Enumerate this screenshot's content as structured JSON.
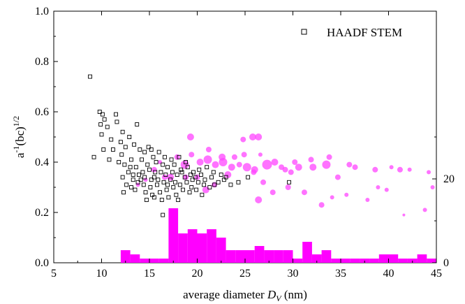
{
  "chart_data": {
    "type": "scatter",
    "xlabel_prefix": "average diameter ",
    "xlabel_var": "D",
    "xlabel_sub": "V",
    "xlabel_unit": " (nm)",
    "ylabel_base": "a",
    "ylabel_sup1": "-1",
    "ylabel_mid": "(bc)",
    "ylabel_sup2": "1/2",
    "xlim": [
      5,
      45
    ],
    "ylim": [
      0,
      1.0
    ],
    "xticks": [
      "5",
      "10",
      "15",
      "20",
      "25",
      "30",
      "35",
      "40",
      "45"
    ],
    "yticks": [
      "0.0",
      "0.2",
      "0.4",
      "0.6",
      "0.8",
      "1.0"
    ],
    "right_axis": {
      "ylim": [
        0,
        60
      ],
      "ticks": [
        "0",
        "20"
      ]
    },
    "legend": {
      "label": "HAADF STEM",
      "position": "top-right"
    },
    "colors": {
      "haadf": "#000000",
      "sims": "#ff44ff",
      "histogram": "#ff00ff"
    },
    "series": [
      {
        "name": "HAADF STEM",
        "marker": "open-square",
        "points": [
          [
            8.8,
            0.74
          ],
          [
            9.8,
            0.6
          ],
          [
            10.1,
            0.59
          ],
          [
            10.3,
            0.57
          ],
          [
            9.9,
            0.55
          ],
          [
            10.6,
            0.54
          ],
          [
            11.5,
            0.59
          ],
          [
            11.6,
            0.56
          ],
          [
            12.2,
            0.52
          ],
          [
            13.7,
            0.55
          ],
          [
            12.9,
            0.5
          ],
          [
            10.0,
            0.51
          ],
          [
            11.0,
            0.49
          ],
          [
            12.0,
            0.48
          ],
          [
            9.2,
            0.42
          ],
          [
            10.2,
            0.45
          ],
          [
            10.8,
            0.41
          ],
          [
            11.2,
            0.45
          ],
          [
            12.1,
            0.43
          ],
          [
            12.5,
            0.46
          ],
          [
            13.4,
            0.47
          ],
          [
            14.0,
            0.45
          ],
          [
            14.5,
            0.44
          ],
          [
            13.1,
            0.41
          ],
          [
            12.4,
            0.39
          ],
          [
            11.8,
            0.4
          ],
          [
            13.0,
            0.38
          ],
          [
            14.2,
            0.41
          ],
          [
            15.2,
            0.45
          ],
          [
            16.0,
            0.44
          ],
          [
            16.6,
            0.42
          ],
          [
            17.3,
            0.41
          ],
          [
            15.7,
            0.4
          ],
          [
            14.8,
            0.39
          ],
          [
            13.6,
            0.38
          ],
          [
            12.8,
            0.36
          ],
          [
            12.2,
            0.34
          ],
          [
            13.3,
            0.35
          ],
          [
            14.3,
            0.36
          ],
          [
            15.0,
            0.37
          ],
          [
            15.5,
            0.34
          ],
          [
            16.2,
            0.36
          ],
          [
            16.9,
            0.38
          ],
          [
            17.6,
            0.39
          ],
          [
            18.3,
            0.37
          ],
          [
            19.0,
            0.38
          ],
          [
            19.6,
            0.36
          ],
          [
            20.2,
            0.37
          ],
          [
            21.0,
            0.38
          ],
          [
            21.7,
            0.36
          ],
          [
            18.8,
            0.4
          ],
          [
            17.9,
            0.35
          ],
          [
            17.2,
            0.33
          ],
          [
            16.5,
            0.32
          ],
          [
            15.8,
            0.31
          ],
          [
            15.1,
            0.3
          ],
          [
            14.4,
            0.31
          ],
          [
            13.8,
            0.32
          ],
          [
            13.1,
            0.3
          ],
          [
            12.6,
            0.31
          ],
          [
            12.3,
            0.28
          ],
          [
            13.5,
            0.29
          ],
          [
            14.6,
            0.28
          ],
          [
            15.3,
            0.27
          ],
          [
            16.1,
            0.28
          ],
          [
            16.8,
            0.29
          ],
          [
            17.5,
            0.3
          ],
          [
            18.2,
            0.31
          ],
          [
            18.9,
            0.32
          ],
          [
            19.5,
            0.33
          ],
          [
            20.1,
            0.32
          ],
          [
            20.8,
            0.33
          ],
          [
            21.5,
            0.34
          ],
          [
            22.2,
            0.32
          ],
          [
            22.8,
            0.33
          ],
          [
            23.5,
            0.31
          ],
          [
            24.3,
            0.32
          ],
          [
            18.5,
            0.29
          ],
          [
            19.2,
            0.28
          ],
          [
            19.9,
            0.29
          ],
          [
            20.5,
            0.27
          ],
          [
            17.8,
            0.27
          ],
          [
            17.0,
            0.26
          ],
          [
            16.3,
            0.25
          ],
          [
            15.5,
            0.26
          ],
          [
            14.7,
            0.25
          ],
          [
            18.0,
            0.25
          ],
          [
            16.4,
            0.19
          ],
          [
            25.3,
            0.34
          ],
          [
            29.6,
            0.32
          ],
          [
            21.3,
            0.3
          ],
          [
            20.7,
            0.31
          ],
          [
            19.4,
            0.3
          ],
          [
            18.7,
            0.34
          ],
          [
            17.4,
            0.36
          ],
          [
            16.7,
            0.35
          ],
          [
            15.9,
            0.33
          ],
          [
            15.2,
            0.33
          ],
          [
            14.5,
            0.34
          ],
          [
            13.9,
            0.35
          ],
          [
            19.3,
            0.35
          ],
          [
            20.4,
            0.35
          ],
          [
            21.8,
            0.31
          ],
          [
            22.5,
            0.35
          ],
          [
            23.0,
            0.34
          ],
          [
            17.7,
            0.32
          ],
          [
            16.9,
            0.31
          ],
          [
            14.1,
            0.33
          ],
          [
            13.3,
            0.33
          ],
          [
            18.4,
            0.36
          ],
          [
            19.8,
            0.34
          ],
          [
            15.6,
            0.36
          ],
          [
            16.4,
            0.39
          ],
          [
            15.4,
            0.42
          ],
          [
            14.9,
            0.46
          ],
          [
            18.1,
            0.42
          ]
        ]
      },
      {
        "name": "",
        "marker": "filled-circle",
        "points": [
          [
            17.9,
            0.42,
            4
          ],
          [
            18.7,
            0.39,
            6
          ],
          [
            19.4,
            0.43,
            4
          ],
          [
            20.3,
            0.4,
            5
          ],
          [
            21.1,
            0.41,
            6
          ],
          [
            21.9,
            0.39,
            5
          ],
          [
            22.7,
            0.4,
            6
          ],
          [
            23.6,
            0.38,
            5
          ],
          [
            24.4,
            0.39,
            4
          ],
          [
            25.2,
            0.38,
            6
          ],
          [
            26.0,
            0.37,
            5
          ],
          [
            27.3,
            0.39,
            7
          ],
          [
            28.1,
            0.4,
            5
          ],
          [
            29.2,
            0.37,
            4
          ],
          [
            30.6,
            0.38,
            5
          ],
          [
            32.1,
            0.38,
            5
          ],
          [
            33.5,
            0.39,
            6
          ],
          [
            36.5,
            0.38,
            4
          ],
          [
            38.6,
            0.37,
            4
          ],
          [
            41.2,
            0.37,
            4
          ],
          [
            42.2,
            0.37,
            3
          ],
          [
            44.2,
            0.36,
            3
          ],
          [
            20.9,
            0.29,
            5
          ],
          [
            21.8,
            0.31,
            4
          ],
          [
            23.2,
            0.35,
            5
          ],
          [
            24.9,
            0.43,
            4
          ],
          [
            24.8,
            0.49,
            4
          ],
          [
            25.8,
            0.5,
            5
          ],
          [
            26.4,
            0.5,
            5
          ],
          [
            26.6,
            0.43,
            3
          ],
          [
            26.9,
            0.32,
            4
          ],
          [
            26.4,
            0.25,
            5
          ],
          [
            27.9,
            0.28,
            4
          ],
          [
            29.5,
            0.3,
            4
          ],
          [
            30.2,
            0.4,
            4
          ],
          [
            31.2,
            0.28,
            4
          ],
          [
            33.0,
            0.23,
            4
          ],
          [
            34.1,
            0.26,
            3
          ],
          [
            34.7,
            0.34,
            4
          ],
          [
            33.8,
            0.42,
            4
          ],
          [
            35.6,
            0.27,
            3
          ],
          [
            37.8,
            0.25,
            3
          ],
          [
            38.9,
            0.3,
            3
          ],
          [
            39.8,
            0.29,
            3
          ],
          [
            41.6,
            0.19,
            2
          ],
          [
            43.8,
            0.21,
            3
          ],
          [
            44.6,
            0.3,
            3
          ],
          [
            29.8,
            0.36,
            4
          ],
          [
            19.3,
            0.5,
            5
          ],
          [
            21.2,
            0.45,
            4
          ],
          [
            22.6,
            0.42,
            5
          ],
          [
            23.9,
            0.42,
            4
          ],
          [
            16.6,
            0.34,
            4
          ],
          [
            15.5,
            0.37,
            4
          ],
          [
            17.2,
            0.34,
            5
          ],
          [
            18.8,
            0.34,
            4
          ],
          [
            20.0,
            0.34,
            4
          ],
          [
            14.6,
            0.33,
            3
          ],
          [
            13.8,
            0.31,
            3
          ],
          [
            16.1,
            0.4,
            3
          ],
          [
            28.8,
            0.38,
            4
          ],
          [
            25.9,
            0.36,
            4
          ],
          [
            31.9,
            0.41,
            4
          ],
          [
            35.9,
            0.39,
            4
          ],
          [
            40.3,
            0.38,
            3
          ]
        ]
      }
    ],
    "histogram": {
      "bin_edges": [
        12,
        13,
        14,
        15,
        16,
        17,
        18,
        19,
        20,
        21,
        22,
        23,
        24,
        25,
        26,
        27,
        28,
        29,
        30,
        31,
        32,
        33,
        34,
        35,
        36,
        37,
        38,
        39,
        40,
        41,
        42,
        43,
        44,
        45
      ],
      "counts": [
        3,
        2,
        1,
        1,
        1,
        13,
        7,
        8,
        7,
        8,
        6,
        3,
        3,
        3,
        4,
        3,
        3,
        3,
        1,
        5,
        2,
        3,
        1,
        1,
        1,
        1,
        1,
        2,
        2,
        1,
        1,
        2,
        1
      ]
    }
  }
}
